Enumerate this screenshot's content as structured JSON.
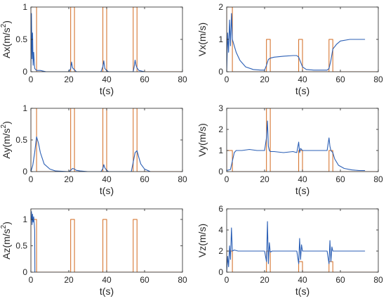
{
  "colors": {
    "signal": "#2b5fb5",
    "pulse": "#d2691e",
    "axis": "#262626",
    "background": "#ffffff"
  },
  "chart_data": [
    {
      "type": "line",
      "ylabel": "Ax(m/s²)",
      "ylabel_main": "Ax(m/s",
      "ylabel_sup": "2",
      "ylabel_end": ")",
      "xlabel": "t(s)",
      "xlim": [
        0,
        80
      ],
      "ylim": [
        0,
        1
      ],
      "xticks": [
        "0",
        "20",
        "40",
        "60",
        "80"
      ],
      "yticks": [
        "0",
        "0.5",
        "1"
      ],
      "series": [
        {
          "role": "pulse",
          "x": [
            0,
            0,
            3,
            3,
            21,
            21,
            23,
            23,
            38,
            38,
            40,
            40,
            54,
            54,
            56,
            56,
            80
          ],
          "y": [
            0,
            1,
            1,
            0,
            0,
            1,
            1,
            0,
            0,
            1,
            1,
            0,
            0,
            1,
            1,
            0,
            0
          ]
        },
        {
          "role": "signal",
          "x": [
            0,
            0.3,
            0.6,
            0.9,
            1.2,
            1.5,
            2,
            3,
            5,
            8,
            20,
            21,
            21.5,
            22,
            23,
            24,
            37,
            38,
            38.5,
            39,
            40,
            41,
            54,
            54.5,
            55,
            55.5,
            56,
            57,
            60
          ],
          "y": [
            0,
            0.9,
            0.2,
            0.6,
            0.1,
            0.3,
            0.05,
            0.02,
            0.02,
            0,
            0,
            0.05,
            0.15,
            0.06,
            0.03,
            0,
            0,
            0.08,
            0.17,
            0.05,
            0.02,
            0,
            0,
            0.08,
            0.18,
            0.1,
            0.06,
            0.02,
            0
          ]
        }
      ]
    },
    {
      "type": "line",
      "ylabel": "Vx(m/s)",
      "xlabel": "t(s)",
      "xlim": [
        0,
        80
      ],
      "ylim": [
        0,
        2
      ],
      "xticks": [
        "0",
        "20",
        "40",
        "60",
        "80"
      ],
      "yticks": [
        "0",
        "1",
        "2"
      ],
      "series": [
        {
          "role": "pulse",
          "x": [
            0,
            0,
            3,
            3,
            21,
            21,
            23,
            23,
            38,
            38,
            40,
            40,
            54,
            54,
            56,
            56,
            80
          ],
          "y": [
            0,
            2,
            2,
            0,
            0,
            1,
            1,
            0,
            0,
            1,
            1,
            0,
            0,
            1,
            1,
            0,
            0
          ]
        },
        {
          "role": "signal",
          "x": [
            0,
            0.5,
            1,
            1.5,
            2,
            2.5,
            3,
            4,
            5,
            7,
            10,
            14,
            18,
            20,
            21,
            22,
            23,
            25,
            30,
            35,
            37,
            38,
            39,
            40,
            42,
            46,
            50,
            53,
            54,
            55,
            56,
            58,
            60,
            65,
            70,
            73
          ],
          "y": [
            0,
            1.2,
            0.6,
            1.6,
            0.8,
            1.8,
            1.0,
            0.8,
            0.6,
            0.35,
            0.15,
            0.07,
            0.05,
            0.05,
            0.2,
            0.38,
            0.42,
            0.45,
            0.48,
            0.5,
            0.5,
            0.45,
            0.3,
            0.15,
            0.07,
            0.05,
            0.05,
            0.05,
            0.1,
            0.35,
            0.7,
            0.85,
            0.95,
            1.0,
            1.0,
            1.0
          ]
        }
      ]
    },
    {
      "type": "line",
      "ylabel": "Ay(m/s²)",
      "ylabel_main": "Ay(m/s",
      "ylabel_sup": "2",
      "ylabel_end": ")",
      "xlabel": "t(s)",
      "xlim": [
        0,
        80
      ],
      "ylim": [
        0,
        1
      ],
      "xticks": [
        "0",
        "20",
        "40",
        "60",
        "80"
      ],
      "yticks": [
        "0",
        "0.5",
        "1"
      ],
      "series": [
        {
          "role": "pulse",
          "x": [
            0,
            0,
            3,
            3,
            21,
            21,
            23,
            23,
            38,
            38,
            40,
            40,
            54,
            54,
            56,
            56,
            80
          ],
          "y": [
            0,
            1,
            1,
            0,
            0,
            1,
            1,
            0,
            0,
            1,
            1,
            0,
            0,
            1,
            1,
            0,
            0
          ]
        },
        {
          "role": "signal",
          "x": [
            0,
            1,
            2,
            3,
            4,
            5,
            7,
            10,
            13,
            20,
            21,
            22,
            23,
            24,
            26,
            30,
            37,
            38,
            38.5,
            39,
            40,
            41,
            53,
            54,
            55,
            56,
            57,
            58,
            60,
            63
          ],
          "y": [
            0,
            0.1,
            0.3,
            0.55,
            0.45,
            0.3,
            0.12,
            0.04,
            0.01,
            0,
            0.02,
            0.05,
            0.04,
            0.02,
            0.01,
            0,
            0,
            0.05,
            0.11,
            0.06,
            0.02,
            0,
            0,
            0.15,
            0.3,
            0.33,
            0.22,
            0.12,
            0.04,
            0
          ]
        }
      ]
    },
    {
      "type": "line",
      "ylabel": "Vy(m/s)",
      "xlabel": "t(s)",
      "xlim": [
        0,
        80
      ],
      "ylim": [
        0,
        3
      ],
      "xticks": [
        "0",
        "20",
        "40",
        "60",
        "80"
      ],
      "yticks": [
        "0",
        "1",
        "2",
        "3"
      ],
      "series": [
        {
          "role": "pulse",
          "x": [
            0,
            0,
            3,
            3,
            21,
            21,
            23,
            23,
            38,
            38,
            40,
            40,
            54,
            54,
            56,
            56,
            80
          ],
          "y": [
            0,
            1,
            1,
            0,
            0,
            3,
            3,
            0,
            0,
            1,
            1,
            0,
            0,
            1,
            1,
            0,
            0
          ]
        },
        {
          "role": "signal",
          "x": [
            0,
            2,
            3,
            4,
            5,
            8,
            12,
            16,
            20,
            21,
            21.5,
            22,
            22.5,
            23,
            25,
            30,
            35,
            37,
            38,
            38.5,
            39,
            40,
            42,
            46,
            50,
            53,
            54,
            54.5,
            55,
            56,
            57,
            59,
            62,
            66,
            70,
            73
          ],
          "y": [
            0.05,
            0.1,
            0.5,
            0.9,
            1.0,
            1.0,
            1.05,
            1.0,
            1.0,
            1.6,
            2.4,
            1.2,
            1.0,
            0.95,
            0.95,
            0.9,
            0.95,
            0.9,
            1.4,
            0.9,
            1.1,
            1.0,
            1.0,
            1.0,
            1.0,
            1.0,
            1.6,
            1.2,
            1.0,
            0.9,
            0.6,
            0.3,
            0.15,
            0.08,
            0.05,
            0.05
          ]
        }
      ]
    },
    {
      "type": "line",
      "ylabel": "Az(m/s²)",
      "ylabel_main": "Az(m/s",
      "ylabel_sup": "2",
      "ylabel_end": ")",
      "xlabel": "t(s)",
      "xlim": [
        0,
        80
      ],
      "ylim": [
        0,
        1.2
      ],
      "xticks": [
        "0",
        "20",
        "40",
        "60",
        "80"
      ],
      "yticks": [
        "0",
        "0.5",
        "1"
      ],
      "series": [
        {
          "role": "pulse",
          "x": [
            0,
            0,
            3,
            3,
            21,
            21,
            23,
            23,
            38,
            38,
            40,
            40,
            54,
            54,
            56,
            56,
            80
          ],
          "y": [
            0,
            1,
            1,
            0,
            0,
            1,
            1,
            0,
            0,
            1,
            1,
            0,
            0,
            1,
            1,
            0,
            0
          ]
        },
        {
          "role": "signal",
          "x": [
            0,
            0.3,
            0.6,
            0.9,
            1.2,
            1.5,
            1.8,
            2.0,
            2.1
          ],
          "y": [
            1.0,
            1.15,
            0.9,
            1.1,
            0.95,
            1.05,
            0.9,
            0.8,
            0
          ]
        }
      ]
    },
    {
      "type": "line",
      "ylabel": "Vz(m/s)",
      "xlabel": "t(s)",
      "xlim": [
        0,
        80
      ],
      "ylim": [
        0,
        6
      ],
      "xticks": [
        "0",
        "20",
        "40",
        "60",
        "80"
      ],
      "yticks": [
        "0",
        "2",
        "4",
        "6"
      ],
      "series": [
        {
          "role": "pulse",
          "x": [
            0,
            0,
            3,
            3,
            21,
            21,
            23,
            23,
            38,
            38,
            40,
            40,
            54,
            54,
            56,
            56,
            80
          ],
          "y": [
            0,
            2,
            2,
            0,
            0,
            2,
            2,
            0,
            0,
            1,
            1,
            0,
            0,
            1,
            1,
            0,
            0
          ]
        },
        {
          "role": "signal",
          "x": [
            0,
            0.5,
            1,
            1.5,
            2,
            2.5,
            3,
            4,
            6,
            10,
            15,
            20,
            21,
            21.5,
            22,
            22.5,
            23,
            24,
            30,
            35,
            37,
            38,
            38.5,
            39,
            39.5,
            40,
            42,
            50,
            53,
            54,
            54.5,
            55,
            55.5,
            56,
            58,
            65,
            73
          ],
          "y": [
            0,
            1.5,
            0.5,
            2.5,
            1.2,
            4.2,
            2.0,
            2.1,
            2.0,
            2.0,
            2.0,
            2.0,
            1.0,
            4.8,
            0.8,
            2.8,
            1.9,
            2.0,
            2.0,
            2.0,
            2.0,
            0.8,
            3.2,
            1.2,
            2.6,
            2.0,
            2.0,
            2.0,
            2.0,
            0.8,
            3.0,
            1.0,
            2.4,
            2.0,
            2.0,
            2.0,
            2.0
          ]
        }
      ]
    }
  ]
}
